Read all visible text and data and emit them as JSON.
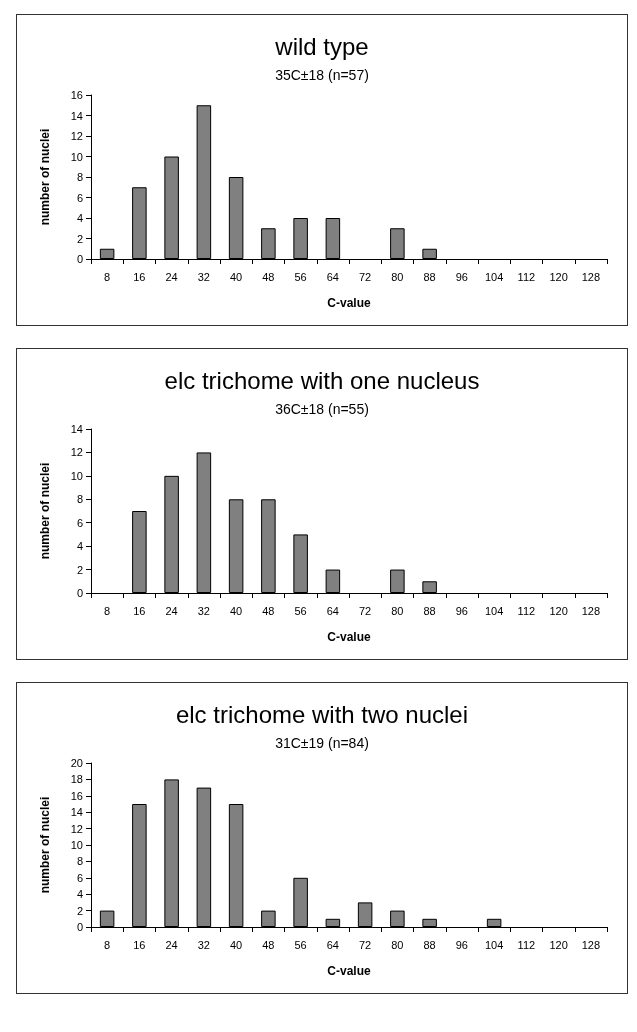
{
  "chart_data": [
    {
      "type": "bar",
      "title": "wild type",
      "subtitle": "35C±18 (n=57)",
      "xlabel": "C-value",
      "ylabel": "number of nuclei",
      "categories": [
        "8",
        "16",
        "24",
        "32",
        "40",
        "48",
        "56",
        "64",
        "72",
        "80",
        "88",
        "96",
        "104",
        "112",
        "120",
        "128"
      ],
      "values": [
        1,
        7,
        10,
        15,
        8,
        3,
        4,
        4,
        0,
        3,
        1,
        0,
        0,
        0,
        0,
        0
      ],
      "color": "#808080",
      "ylim": [
        0,
        16
      ],
      "yticks": [
        0,
        2,
        4,
        6,
        8,
        10,
        12,
        14,
        16
      ],
      "grid": false
    },
    {
      "type": "bar",
      "title": "elc trichome with one nucleus",
      "subtitle": "36C±18 (n=55)",
      "xlabel": "C-value",
      "ylabel": "number of nuclei",
      "categories": [
        "8",
        "16",
        "24",
        "32",
        "40",
        "48",
        "56",
        "64",
        "72",
        "80",
        "88",
        "96",
        "104",
        "112",
        "120",
        "128"
      ],
      "values": [
        0,
        7,
        10,
        12,
        8,
        8,
        5,
        2,
        0,
        2,
        1,
        0,
        0,
        0,
        0,
        0
      ],
      "color": "#808080",
      "ylim": [
        0,
        14
      ],
      "yticks": [
        0,
        2,
        4,
        6,
        8,
        10,
        12,
        14
      ],
      "grid": false
    },
    {
      "type": "bar",
      "title": "elc trichome with two nuclei",
      "subtitle": "31C±19 (n=84)",
      "xlabel": "C-value",
      "ylabel": "number of nuclei",
      "categories": [
        "8",
        "16",
        "24",
        "32",
        "40",
        "48",
        "56",
        "64",
        "72",
        "80",
        "88",
        "96",
        "104",
        "112",
        "120",
        "128"
      ],
      "values": [
        2,
        15,
        18,
        17,
        15,
        2,
        6,
        1,
        3,
        2,
        1,
        0,
        1,
        0,
        0,
        0
      ],
      "color": "#808080",
      "ylim": [
        0,
        20
      ],
      "yticks": [
        0,
        2,
        4,
        6,
        8,
        10,
        12,
        14,
        16,
        18,
        20
      ],
      "grid": false
    }
  ]
}
